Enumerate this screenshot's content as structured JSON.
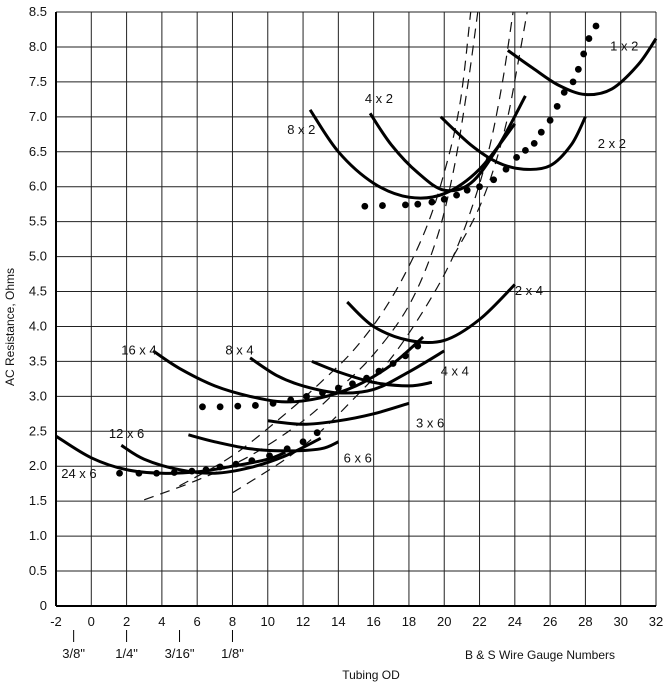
{
  "chart_data": {
    "type": "line",
    "title": "",
    "xlabel": "Tubing OD",
    "xlabel_secondary": "B & S Wire Gauge Numbers",
    "ylabel": "AC Resistance, Ohms",
    "xlim": [
      -2,
      32
    ],
    "ylim": [
      0,
      8.5
    ],
    "x_ticks": [
      -2,
      0,
      2,
      4,
      6,
      8,
      10,
      12,
      14,
      16,
      18,
      20,
      22,
      24,
      26,
      28,
      30,
      32
    ],
    "x_tick_labels": [
      "-2",
      "0",
      "2",
      "4",
      "6",
      "8",
      "10",
      "12",
      "14",
      "16",
      "18",
      "20",
      "22",
      "24",
      "26",
      "28",
      "30",
      "32"
    ],
    "y_ticks": [
      0,
      0.5,
      1.0,
      1.5,
      2.0,
      2.5,
      3.0,
      3.5,
      4.0,
      4.5,
      5.0,
      5.5,
      6.0,
      6.5,
      7.0,
      7.5,
      8.0,
      8.5
    ],
    "y_tick_labels": [
      "0",
      "0.5",
      "1.0",
      "1.5",
      "2.0",
      "2.5",
      "3.0",
      "3.5",
      "4.0",
      "4.5",
      "5.0",
      "5.5",
      "6.0",
      "6.5",
      "7.0",
      "7.5",
      "8.0",
      "8.5"
    ],
    "tubing_marks": [
      {
        "x": -1,
        "label": "3/8\""
      },
      {
        "x": 2,
        "label": "1/4\""
      },
      {
        "x": 5,
        "label": "3/16\""
      },
      {
        "x": 8,
        "label": "1/8\""
      }
    ],
    "grid": true,
    "series": [
      {
        "name": "1 x 2",
        "label_at": [
          30.2,
          8.0
        ],
        "x": [
          23.6,
          25,
          26.5,
          28,
          29.5,
          31,
          32
        ],
        "y": [
          7.95,
          7.7,
          7.45,
          7.32,
          7.4,
          7.75,
          8.12
        ]
      },
      {
        "name": "4 x 2",
        "label_at": [
          16.3,
          7.25
        ],
        "x": [
          15.8,
          17,
          18.5,
          20,
          21.5,
          23,
          24.6
        ],
        "y": [
          7.05,
          6.6,
          6.2,
          5.95,
          6.05,
          6.55,
          7.3
        ]
      },
      {
        "name": "8 x 2",
        "label_at": [
          11.9,
          6.8
        ],
        "x": [
          12.4,
          14,
          16,
          18,
          20,
          22,
          24
        ],
        "y": [
          7.1,
          6.5,
          6.05,
          5.85,
          5.9,
          6.25,
          6.9
        ]
      },
      {
        "name": "2 x 2",
        "label_at": [
          29.5,
          6.6
        ],
        "x": [
          19.8,
          21.5,
          23,
          24.5,
          26,
          27.2,
          28
        ],
        "y": [
          7.0,
          6.6,
          6.35,
          6.25,
          6.3,
          6.6,
          7.0
        ]
      },
      {
        "name": "2 x 4",
        "label_at": [
          24.8,
          4.5
        ],
        "x": [
          14.5,
          16,
          18,
          20,
          22,
          24
        ],
        "y": [
          4.35,
          4.0,
          3.8,
          3.8,
          4.1,
          4.6
        ]
      },
      {
        "name": "16 x 4",
        "label_at": [
          2.7,
          3.65
        ],
        "x": [
          3.5,
          5,
          7,
          9,
          11,
          13,
          15,
          17,
          18.8
        ],
        "y": [
          3.65,
          3.4,
          3.15,
          3.0,
          2.92,
          2.98,
          3.15,
          3.45,
          3.85
        ]
      },
      {
        "name": "8 x 4",
        "label_at": [
          8.4,
          3.65
        ],
        "x": [
          9,
          10.5,
          12,
          14,
          16,
          18,
          20
        ],
        "y": [
          3.55,
          3.3,
          3.15,
          3.05,
          3.1,
          3.35,
          3.65
        ]
      },
      {
        "name": "4 x 4",
        "label_at": [
          20.6,
          3.35
        ],
        "x": [
          12.5,
          14,
          16,
          18,
          19.3
        ],
        "y": [
          3.5,
          3.35,
          3.2,
          3.15,
          3.2
        ]
      },
      {
        "name": "3 x 6",
        "label_at": [
          19.2,
          2.6
        ],
        "x": [
          10,
          12,
          14,
          16,
          18
        ],
        "y": [
          2.65,
          2.6,
          2.65,
          2.75,
          2.9
        ]
      },
      {
        "name": "12 x 6",
        "label_at": [
          2.0,
          2.45
        ],
        "x": [
          1.7,
          3,
          5,
          7,
          9,
          11,
          13
        ],
        "y": [
          2.3,
          2.1,
          1.95,
          1.9,
          1.98,
          2.15,
          2.4
        ]
      },
      {
        "name": "6 x 6",
        "label_at": [
          15.1,
          2.1
        ],
        "x": [
          5.5,
          7,
          9,
          11,
          13,
          14
        ],
        "y": [
          2.45,
          2.35,
          2.25,
          2.22,
          2.25,
          2.35
        ]
      },
      {
        "name": "24 x 6",
        "label_at": [
          -0.7,
          1.88
        ],
        "x": [
          -2,
          0,
          2,
          4,
          6,
          8,
          10,
          11
        ],
        "y": [
          2.43,
          2.12,
          1.95,
          1.9,
          1.92,
          2.0,
          2.1,
          2.2
        ]
      }
    ],
    "measured_points": [
      {
        "x": [
          15.5,
          16.5,
          17.8,
          18.5,
          19.3,
          20,
          20.7,
          21.3,
          22,
          22.8,
          23.5,
          24.1,
          24.6,
          25.1,
          25.5,
          26,
          26.4,
          26.8,
          27.3,
          27.6,
          27.9,
          28.2,
          28.6
        ],
        "y": [
          5.72,
          5.73,
          5.74,
          5.75,
          5.78,
          5.82,
          5.88,
          5.95,
          6.0,
          6.1,
          6.25,
          6.42,
          6.52,
          6.62,
          6.78,
          6.95,
          7.15,
          7.35,
          7.5,
          7.68,
          7.9,
          8.12,
          8.3
        ]
      },
      {
        "x": [
          6.3,
          7.3,
          8.3,
          9.3,
          10.3,
          11.3,
          12.2,
          13.1,
          14,
          14.8,
          15.6,
          16.3,
          17.1,
          17.8,
          18.5
        ],
        "y": [
          2.85,
          2.85,
          2.86,
          2.87,
          2.9,
          2.95,
          3.0,
          3.05,
          3.12,
          3.18,
          3.26,
          3.36,
          3.47,
          3.58,
          3.72
        ]
      },
      {
        "x": [
          1.6,
          2.7,
          3.7,
          4.7,
          5.7,
          6.5,
          7.3,
          8.2,
          9.1,
          10.1,
          11.1,
          12.0,
          12.8
        ],
        "y": [
          1.9,
          1.9,
          1.9,
          1.91,
          1.93,
          1.95,
          1.99,
          2.03,
          2.08,
          2.15,
          2.25,
          2.35,
          2.48
        ]
      }
    ],
    "dashed_curves": [
      {
        "x": [
          3,
          6,
          9,
          12,
          14,
          16,
          18,
          19.5,
          20.5,
          21.3,
          21.9
        ],
        "y": [
          1.52,
          1.8,
          2.15,
          2.65,
          3.1,
          3.6,
          4.3,
          5.2,
          6.2,
          7.4,
          8.5
        ]
      },
      {
        "x": [
          5,
          8,
          11,
          13,
          15,
          17,
          18.8,
          20,
          20.9,
          21.5
        ],
        "y": [
          1.72,
          2.15,
          2.75,
          3.2,
          3.7,
          4.4,
          5.3,
          6.2,
          7.2,
          8.5
        ]
      },
      {
        "x": [
          8,
          11,
          13,
          15,
          17,
          19,
          20.5,
          21.7,
          22.6,
          23.3,
          23.9
        ],
        "y": [
          1.62,
          2.1,
          2.5,
          3.0,
          3.55,
          4.3,
          5.0,
          5.8,
          6.6,
          7.5,
          8.5
        ]
      },
      {
        "x": [
          20.5,
          21.8,
          22.8,
          23.6,
          24.2,
          24.7
        ],
        "y": [
          5.0,
          5.6,
          6.25,
          7.0,
          7.8,
          8.5
        ]
      }
    ]
  }
}
